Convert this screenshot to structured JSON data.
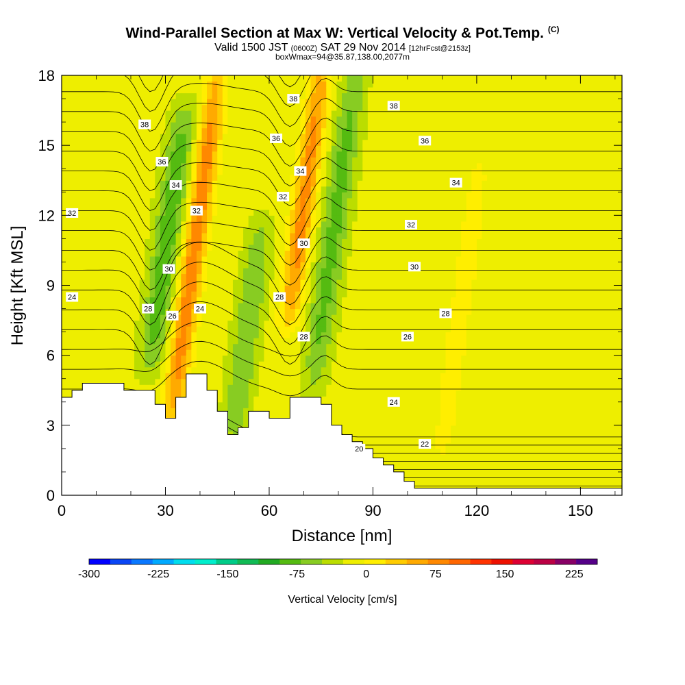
{
  "title": {
    "main": "Wind-Parallel Section at Max W: Vertical Velocity & Pot.Temp.",
    "copyright": "(C)",
    "valid_prefix": "Valid 1500 JST",
    "valid_utc": "(0600Z)",
    "valid_date": "SAT 29 Nov 2014",
    "forecast": "[12hrFcst@2153z]",
    "box": "boxWmax=94@35.87,138.00,2077m"
  },
  "chart_data": {
    "type": "heatmap",
    "xlabel": "Distance [nm]",
    "ylabel": "Height [Kft MSL]",
    "xlim": [
      0,
      162
    ],
    "ylim": [
      0,
      18
    ],
    "x_ticks": [
      0,
      30,
      60,
      90,
      120,
      150
    ],
    "y_ticks": [
      0,
      3,
      6,
      9,
      12,
      15,
      18
    ],
    "colorbar": {
      "label": "Vertical Velocity [cm/s]",
      "min": -300,
      "max": 250,
      "step": 25,
      "tick_values": [
        -300,
        -225,
        -150,
        -75,
        0,
        75,
        150,
        225
      ],
      "colors": [
        "#0000ff",
        "#0a46f5",
        "#0a78ff",
        "#00aaff",
        "#00ddee",
        "#00eecc",
        "#00cc88",
        "#11bb55",
        "#22aa22",
        "#55bb11",
        "#88cc22",
        "#bbdd00",
        "#eeee00",
        "#ffee00",
        "#ffcc00",
        "#ffaa00",
        "#ff8800",
        "#ff6600",
        "#ff3300",
        "#ee1100",
        "#dd0033",
        "#bb0044",
        "#880066",
        "#550088"
      ]
    },
    "shading_features": [
      {
        "type": "updraft",
        "x": 32,
        "y_range": [
          3.5,
          18
        ],
        "value": 110
      },
      {
        "type": "updraft",
        "x": 66,
        "y_range": [
          8,
          18
        ],
        "value": 100
      },
      {
        "type": "downdraft",
        "x": 26,
        "y_range": [
          6,
          16
        ],
        "value": -80
      },
      {
        "type": "downdraft",
        "x": 50,
        "y_range": [
          3,
          11
        ],
        "value": -60
      },
      {
        "type": "downdraft",
        "x": 73,
        "y_range": [
          5,
          18
        ],
        "value": -70
      },
      {
        "type": "updraft",
        "x": 110,
        "y_range": [
          2,
          14
        ],
        "value": 30
      }
    ],
    "isentropes": [
      {
        "theta": 20,
        "label_pos": [
          104,
          1.8
        ]
      },
      {
        "theta": 22,
        "label_pos": [
          120,
          2.2
        ]
      },
      {
        "theta": 24,
        "label_pos": [
          110,
          4.0
        ]
      },
      {
        "theta": 26,
        "label_pos": [
          110,
          6.8
        ]
      },
      {
        "theta": 28,
        "label_pos": [
          110,
          7.8
        ]
      },
      {
        "theta": 30,
        "label_pos": [
          110,
          9.8
        ]
      },
      {
        "theta": 32,
        "label_pos": [
          110,
          11.6
        ]
      },
      {
        "theta": 34,
        "label_pos": [
          110,
          13.4
        ]
      },
      {
        "theta": 36,
        "label_pos": [
          110,
          15.2
        ]
      },
      {
        "theta": 38,
        "label_pos": [
          110,
          16.8
        ]
      }
    ],
    "contour_labels": [
      {
        "text": "38",
        "x": 24,
        "y": 15.9
      },
      {
        "text": "36",
        "x": 29,
        "y": 14.3
      },
      {
        "text": "34",
        "x": 33,
        "y": 13.3
      },
      {
        "text": "32",
        "x": 39,
        "y": 12.2
      },
      {
        "text": "32",
        "x": 3,
        "y": 12.1
      },
      {
        "text": "30",
        "x": 31,
        "y": 9.7
      },
      {
        "text": "28",
        "x": 25,
        "y": 8.0
      },
      {
        "text": "26",
        "x": 32,
        "y": 7.7
      },
      {
        "text": "24",
        "x": 40,
        "y": 8.0
      },
      {
        "text": "24",
        "x": 3,
        "y": 8.5
      },
      {
        "text": "38",
        "x": 67,
        "y": 17.0
      },
      {
        "text": "36",
        "x": 62,
        "y": 15.3
      },
      {
        "text": "34",
        "x": 69,
        "y": 13.9
      },
      {
        "text": "32",
        "x": 64,
        "y": 12.8
      },
      {
        "text": "30",
        "x": 70,
        "y": 10.8
      },
      {
        "text": "28",
        "x": 63,
        "y": 8.5
      },
      {
        "text": "28",
        "x": 70,
        "y": 6.8
      },
      {
        "text": "38",
        "x": 96,
        "y": 16.7
      },
      {
        "text": "36",
        "x": 105,
        "y": 15.2
      },
      {
        "text": "34",
        "x": 114,
        "y": 13.4
      },
      {
        "text": "32",
        "x": 101,
        "y": 11.6
      },
      {
        "text": "30",
        "x": 102,
        "y": 9.8
      },
      {
        "text": "28",
        "x": 111,
        "y": 7.8
      },
      {
        "text": "26",
        "x": 100,
        "y": 6.8
      },
      {
        "text": "24",
        "x": 96,
        "y": 4.0
      },
      {
        "text": "22",
        "x": 105,
        "y": 2.2
      },
      {
        "text": "20",
        "x": 86,
        "y": 2.0
      }
    ],
    "terrain": [
      [
        0,
        4.2
      ],
      [
        3,
        4.2
      ],
      [
        3,
        4.5
      ],
      [
        6,
        4.5
      ],
      [
        6,
        4.8
      ],
      [
        18,
        4.8
      ],
      [
        18,
        4.5
      ],
      [
        27,
        4.5
      ],
      [
        27,
        3.9
      ],
      [
        30,
        3.9
      ],
      [
        30,
        3.3
      ],
      [
        33,
        3.3
      ],
      [
        33,
        4.2
      ],
      [
        36,
        4.2
      ],
      [
        36,
        5.2
      ],
      [
        42,
        5.2
      ],
      [
        42,
        4.5
      ],
      [
        45,
        4.5
      ],
      [
        45,
        3.6
      ],
      [
        48,
        3.6
      ],
      [
        48,
        2.6
      ],
      [
        51,
        2.6
      ],
      [
        51,
        2.9
      ],
      [
        54,
        2.9
      ],
      [
        54,
        3.6
      ],
      [
        60,
        3.6
      ],
      [
        60,
        3.3
      ],
      [
        66,
        3.3
      ],
      [
        66,
        4.2
      ],
      [
        72,
        4.2
      ],
      [
        72,
        4.2
      ],
      [
        75,
        4.2
      ],
      [
        75,
        3.9
      ],
      [
        78,
        3.9
      ],
      [
        78,
        3.0
      ],
      [
        81,
        3.0
      ],
      [
        81,
        2.6
      ],
      [
        84,
        2.6
      ],
      [
        84,
        2.3
      ],
      [
        87,
        2.3
      ],
      [
        87,
        2.0
      ],
      [
        90,
        2.0
      ],
      [
        90,
        1.6
      ],
      [
        93,
        1.6
      ],
      [
        93,
        1.3
      ],
      [
        96,
        1.3
      ],
      [
        96,
        1.0
      ],
      [
        99,
        1.0
      ],
      [
        99,
        0.6
      ],
      [
        102,
        0.6
      ],
      [
        102,
        0.3
      ],
      [
        162,
        0.3
      ]
    ]
  }
}
